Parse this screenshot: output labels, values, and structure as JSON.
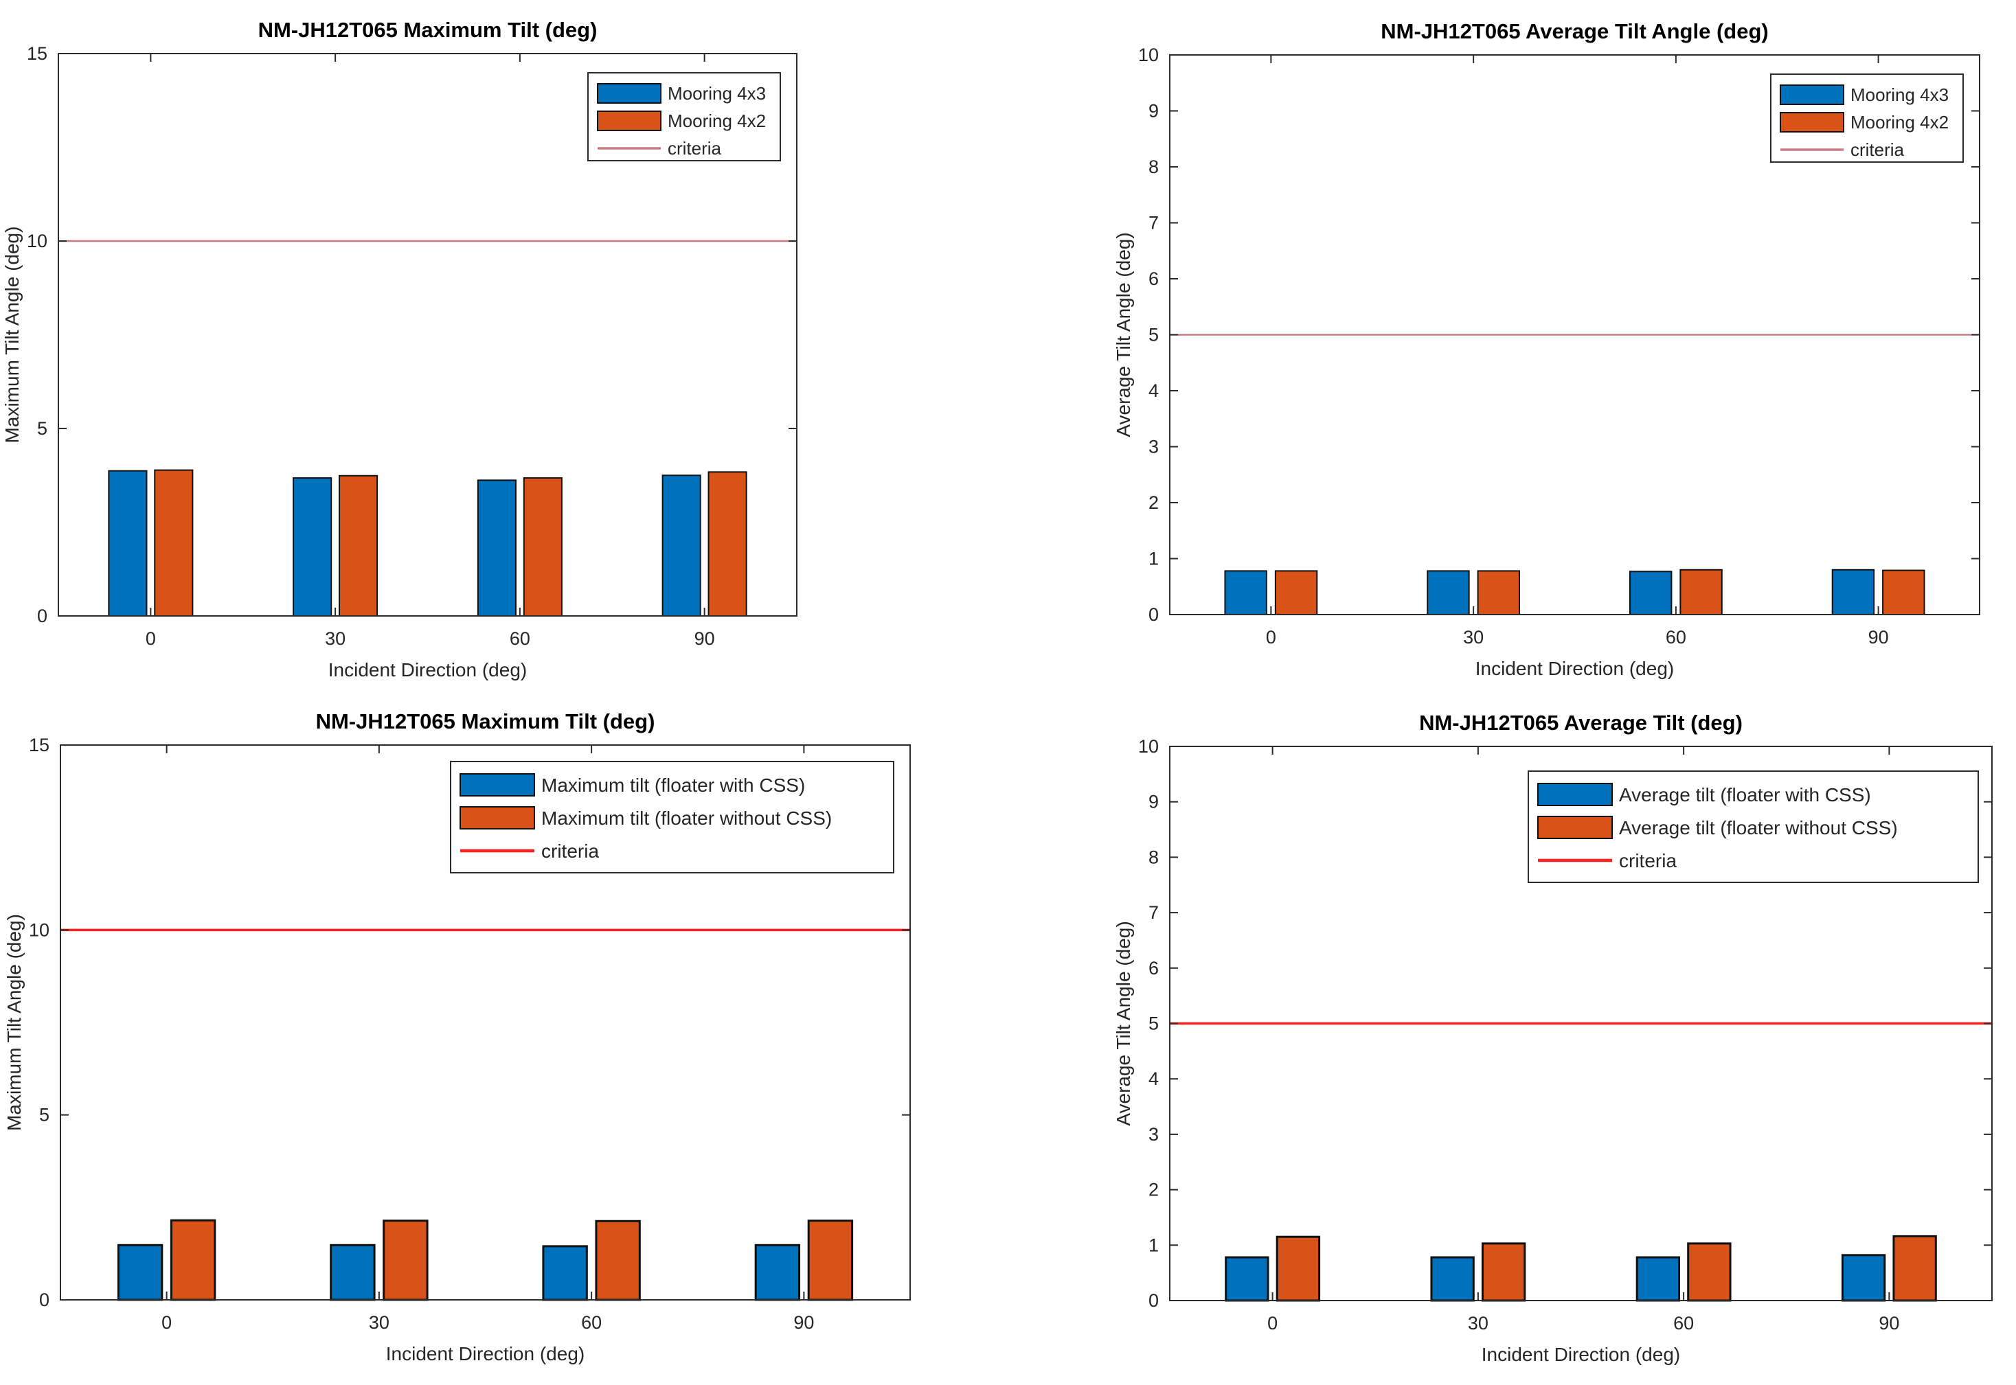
{
  "figure": {
    "background": "#ffffff"
  },
  "colors": {
    "series_blue": "#0072BD",
    "series_orange": "#D95319",
    "bar_edge": "#101010",
    "axis": "#2b2b2b",
    "text": "#262626",
    "title_text": "#000000",
    "criteria_soft": "#c97b84",
    "criteria_bright": "#ff2121"
  },
  "chart_data": [
    {
      "id": "top-left",
      "type": "bar",
      "title": "NM-JH12T065 Maximum Tilt (deg)",
      "xlabel": "Incident Direction (deg)",
      "ylabel": "Maximum Tilt Angle (deg)",
      "ylim": [
        0,
        15
      ],
      "yticks": [
        0,
        5,
        10,
        15
      ],
      "categories": [
        "0",
        "30",
        "60",
        "90"
      ],
      "series": [
        {
          "name": "Mooring 4x3",
          "color_key": "series_blue",
          "values": [
            3.87,
            3.68,
            3.62,
            3.75
          ]
        },
        {
          "name": "Mooring 4x2",
          "color_key": "series_orange",
          "values": [
            3.89,
            3.74,
            3.68,
            3.84
          ]
        }
      ],
      "criteria": {
        "label": "criteria",
        "value": 10,
        "color_key": "criteria_soft"
      },
      "legend_position": "upper-right",
      "grid": false
    },
    {
      "id": "top-right",
      "type": "bar",
      "title": "NM-JH12T065 Average Tilt Angle (deg)",
      "xlabel": "Incident Direction (deg)",
      "ylabel": "Average Tilt Angle (deg)",
      "ylim": [
        0,
        10
      ],
      "yticks": [
        0,
        1,
        2,
        3,
        4,
        5,
        6,
        7,
        8,
        9,
        10
      ],
      "categories": [
        "0",
        "30",
        "60",
        "90"
      ],
      "series": [
        {
          "name": "Mooring 4x3",
          "color_key": "series_blue",
          "values": [
            0.78,
            0.78,
            0.77,
            0.8
          ]
        },
        {
          "name": "Mooring 4x2",
          "color_key": "series_orange",
          "values": [
            0.78,
            0.78,
            0.8,
            0.79
          ]
        }
      ],
      "criteria": {
        "label": "criteria",
        "value": 5,
        "color_key": "criteria_soft"
      },
      "legend_position": "upper-right",
      "grid": false
    },
    {
      "id": "bottom-left",
      "type": "bar",
      "title": "NM-JH12T065 Maximum Tilt (deg)",
      "xlabel": "Incident Direction (deg)",
      "ylabel": "Maximum Tilt Angle (deg)",
      "ylim": [
        0,
        15
      ],
      "yticks": [
        0,
        5,
        10,
        15
      ],
      "categories": [
        "0",
        "30",
        "60",
        "90"
      ],
      "series": [
        {
          "name": "Maximum tilt (floater with CSS)",
          "color_key": "series_blue",
          "values": [
            1.48,
            1.48,
            1.45,
            1.48
          ]
        },
        {
          "name": "Maximum tilt (floater without CSS)",
          "color_key": "series_orange",
          "values": [
            2.15,
            2.14,
            2.13,
            2.14
          ]
        }
      ],
      "criteria": {
        "label": "criteria",
        "value": 10,
        "color_key": "criteria_bright"
      },
      "legend_position": "upper-right",
      "grid": false
    },
    {
      "id": "bottom-right",
      "type": "bar",
      "title": "NM-JH12T065 Average Tilt (deg)",
      "xlabel": "Incident Direction (deg)",
      "ylabel": "Average Tilt Angle (deg)",
      "ylim": [
        0,
        10
      ],
      "yticks": [
        0,
        1,
        2,
        3,
        4,
        5,
        6,
        7,
        8,
        9,
        10
      ],
      "categories": [
        "0",
        "30",
        "60",
        "90"
      ],
      "series": [
        {
          "name": "Average tilt (floater with CSS)",
          "color_key": "series_blue",
          "values": [
            0.78,
            0.78,
            0.78,
            0.82
          ]
        },
        {
          "name": "Average tilt (floater without CSS)",
          "color_key": "series_orange",
          "values": [
            1.15,
            1.03,
            1.03,
            1.16
          ]
        }
      ],
      "criteria": {
        "label": "criteria",
        "value": 5,
        "color_key": "criteria_bright"
      },
      "legend_position": "upper-right",
      "grid": false
    }
  ]
}
